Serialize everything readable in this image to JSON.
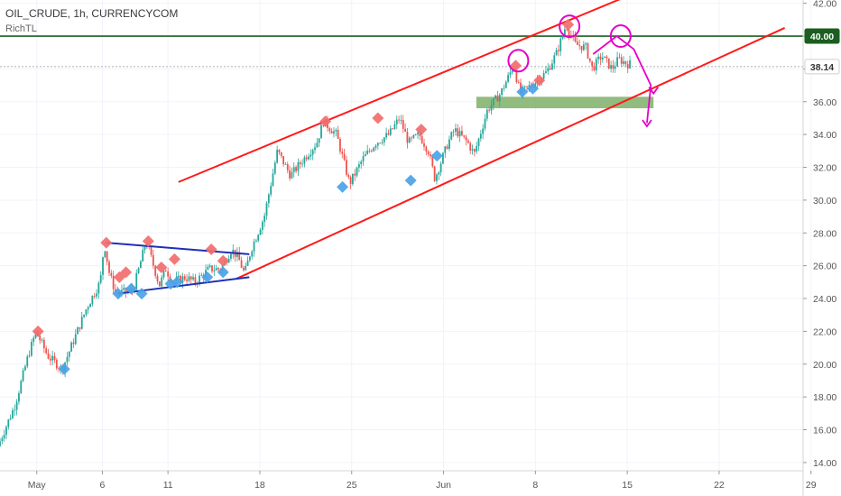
{
  "header": {
    "symbol_line": "OIL_CRUDE, 1h, CURRENCYCOM",
    "indicator": "RichTL"
  },
  "colors": {
    "up": "#26a69a",
    "down": "#ef5350",
    "channel": "#ff1a1a",
    "triangle": "#1e2fb8",
    "resistance": "#1b5e20",
    "marker_high": "#f36c6c",
    "marker_low": "#4aa3e6",
    "annotation": "#e600c8",
    "support_zone": "#7fb069"
  },
  "chart_data": {
    "type": "candlestick",
    "title": "OIL_CRUDE, 1h, CURRENCYCOM",
    "indicator": "RichTL",
    "y_axis": {
      "ticks": [
        14.0,
        16.0,
        18.0,
        20.0,
        22.0,
        24.0,
        26.0,
        28.0,
        30.0,
        32.0,
        34.0,
        36.0,
        38.0,
        40.0,
        42.0
      ],
      "labels": [
        "14.00",
        "16.00",
        "18.00",
        "20.00",
        "22.00",
        "24.00",
        "26.00",
        "28.00",
        "30.00",
        "32.00",
        "34.00",
        "36.00",
        "38.00",
        "40.00",
        "42.00"
      ],
      "range": [
        13.5,
        42.2
      ]
    },
    "x_axis": {
      "range_days": [
        -2.8,
        58.4
      ],
      "ticks": [
        {
          "day": 0,
          "label": "May"
        },
        {
          "day": 5,
          "label": "6"
        },
        {
          "day": 10,
          "label": "11"
        },
        {
          "day": 17,
          "label": "18"
        },
        {
          "day": 24,
          "label": "25"
        },
        {
          "day": 31,
          "label": "Jun"
        },
        {
          "day": 38,
          "label": "8"
        },
        {
          "day": 45,
          "label": "15"
        },
        {
          "day": 52,
          "label": "22"
        },
        {
          "day": 59,
          "label": "29"
        }
      ]
    },
    "price_path": [
      [
        -2.8,
        15.0
      ],
      [
        -1.5,
        17.5
      ],
      [
        -0.5,
        20.5
      ],
      [
        0.1,
        22.0
      ],
      [
        1.0,
        20.5
      ],
      [
        2.1,
        19.7
      ],
      [
        3.0,
        21.5
      ],
      [
        4.0,
        23.5
      ],
      [
        5.0,
        25.0
      ],
      [
        5.3,
        27.4
      ],
      [
        5.7,
        25.5
      ],
      [
        6.2,
        24.3
      ],
      [
        7.5,
        24.5
      ],
      [
        8.5,
        27.5
      ],
      [
        9.5,
        24.8
      ],
      [
        10.0,
        25.8
      ],
      [
        10.5,
        25.0
      ],
      [
        11.5,
        25.3
      ],
      [
        12.2,
        25.0
      ],
      [
        13.3,
        25.8
      ],
      [
        14.2,
        25.8
      ],
      [
        15.0,
        27.0
      ],
      [
        15.5,
        26.5
      ],
      [
        16.0,
        25.5
      ],
      [
        16.5,
        27.0
      ],
      [
        17.5,
        29.0
      ],
      [
        18.5,
        33.0
      ],
      [
        19.5,
        31.5
      ],
      [
        20.5,
        32.5
      ],
      [
        21.5,
        33.5
      ],
      [
        22.0,
        34.8
      ],
      [
        23.0,
        34.0
      ],
      [
        24.0,
        31.0
      ],
      [
        25.0,
        32.5
      ],
      [
        26.0,
        33.5
      ],
      [
        27.0,
        34.0
      ],
      [
        27.8,
        35.0
      ],
      [
        28.5,
        33.5
      ],
      [
        29.3,
        34.0
      ],
      [
        30.0,
        33.0
      ],
      [
        30.5,
        31.3
      ],
      [
        31.5,
        33.5
      ],
      [
        32.0,
        34.3
      ],
      [
        33.0,
        33.5
      ],
      [
        33.5,
        32.8
      ],
      [
        34.5,
        35.5
      ],
      [
        35.5,
        36.5
      ],
      [
        36.5,
        38.2
      ],
      [
        37.0,
        36.5
      ],
      [
        37.5,
        36.8
      ],
      [
        38.3,
        37.3
      ],
      [
        39.0,
        37.8
      ],
      [
        39.8,
        39.0
      ],
      [
        40.5,
        40.7
      ],
      [
        41.2,
        39.5
      ],
      [
        42.0,
        39.3
      ],
      [
        42.5,
        38.0
      ],
      [
        43.2,
        38.8
      ],
      [
        44.0,
        38.0
      ],
      [
        44.5,
        38.6
      ],
      [
        45.2,
        38.3
      ]
    ],
    "signals": {
      "highs": [
        [
          0.1,
          22.0
        ],
        [
          5.3,
          27.4
        ],
        [
          6.8,
          25.6
        ],
        [
          8.5,
          27.5
        ],
        [
          6.3,
          25.3
        ],
        [
          9.5,
          25.9
        ],
        [
          10.5,
          26.4
        ],
        [
          13.3,
          27.0
        ],
        [
          14.2,
          26.3
        ],
        [
          22.0,
          34.8
        ],
        [
          26.0,
          35.0
        ],
        [
          29.3,
          34.3
        ],
        [
          36.5,
          38.2
        ],
        [
          38.3,
          37.3
        ],
        [
          40.5,
          40.7
        ]
      ],
      "lows": [
        [
          2.1,
          19.7
        ],
        [
          6.2,
          24.3
        ],
        [
          7.2,
          24.6
        ],
        [
          8.0,
          24.3
        ],
        [
          10.2,
          24.9
        ],
        [
          10.7,
          25.0
        ],
        [
          13.0,
          25.3
        ],
        [
          14.2,
          25.6
        ],
        [
          23.3,
          30.8
        ],
        [
          28.5,
          31.2
        ],
        [
          30.5,
          32.7
        ],
        [
          37.0,
          36.6
        ],
        [
          37.8,
          36.8
        ]
      ]
    },
    "resistance_level": 40.0,
    "last_price": 38.14,
    "price_labels": [
      {
        "value": 40.0,
        "text": "40.00"
      },
      {
        "value": 38.14,
        "text": "38.14"
      }
    ],
    "support_zone": {
      "days": [
        33.5,
        47.0
      ],
      "prices": [
        35.6,
        36.3
      ]
    },
    "channel_upper": [
      [
        10.8,
        31.1
      ],
      [
        45.5,
        42.6
      ]
    ],
    "channel_lower": [
      [
        15.2,
        25.2
      ],
      [
        57.0,
        40.5
      ]
    ],
    "triangle_upper": [
      [
        5.3,
        27.4
      ],
      [
        16.2,
        26.7
      ]
    ],
    "triangle_lower": [
      [
        6.2,
        24.3
      ],
      [
        16.2,
        25.3
      ]
    ],
    "annotations": {
      "circles": [
        [
          36.7,
          38.5
        ],
        [
          40.6,
          40.6
        ],
        [
          44.5,
          40.0
        ]
      ],
      "forecast_path": [
        [
          42.4,
          38.9
        ],
        [
          44.2,
          40.0
        ],
        [
          45.5,
          39.2
        ],
        [
          46.8,
          37.0
        ],
        [
          46.5,
          34.7
        ]
      ],
      "arrow_heads": [
        [
          47.0,
          36.5
        ],
        [
          46.5,
          34.5
        ]
      ]
    }
  }
}
